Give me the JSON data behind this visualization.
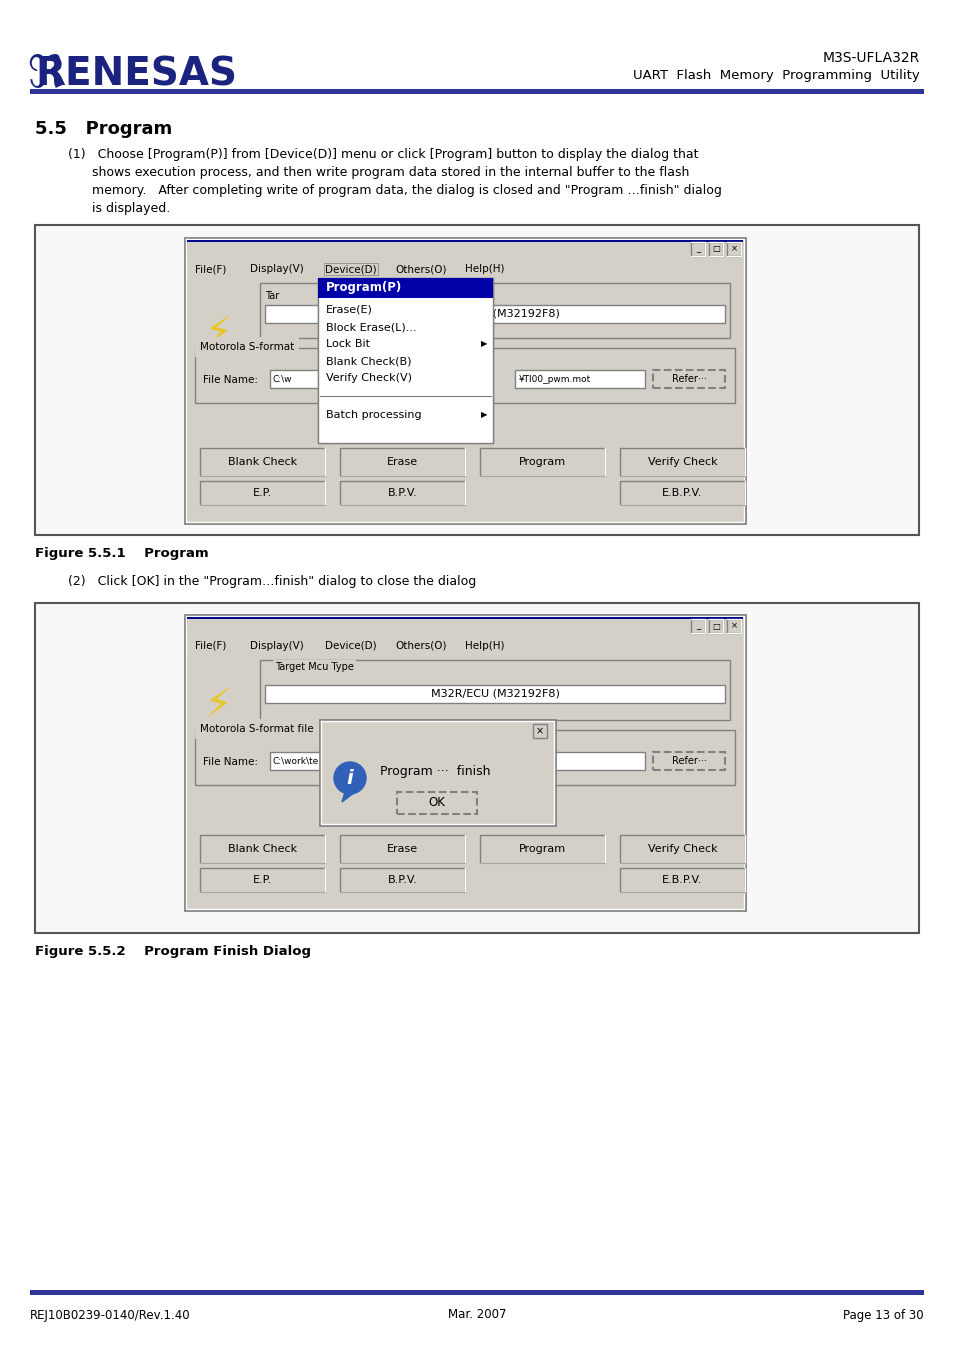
{
  "page_width": 9.54,
  "page_height": 13.51,
  "dpi": 100,
  "bg_color": "#ffffff",
  "header_line_color": "#2c3593",
  "renesas_color": "#1a237e",
  "black": "#000000",
  "gray_dialog": "#d4d0c8",
  "gray_light": "#c8c4bc",
  "white": "#ffffff",
  "dark_blue": "#000090",
  "med_blue": "#4080c0",
  "title_bar_left": "#6090d8",
  "win_gray": "#ece9d8",
  "section": "5.5   Program",
  "para1": [
    "(1)   Choose [Program(P)] from [Device(D)] menu or click [Program] button to display the dialog that",
    "      shows execution process, and then write program data stored in the internal buffer to the flash",
    "      memory.   After completing write of program data, the dialog is closed and \"Program …finish\" dialog",
    "      is displayed."
  ],
  "fig1_caption": "Figure 5.5.1    Program",
  "para2": "(2)   Click [OK] in the \"Program…finish\" dialog to close the dialog",
  "fig2_caption": "Figure 5.5.2    Program Finish Dialog",
  "footer_left": "REJ10B0239-0140/Rev.1.40",
  "footer_center": "Mar. 2007",
  "footer_right": "Page 13 of 30",
  "header_title": "M3S-UFLA32R",
  "header_sub": "UART  Flash  Memory  Programming  Utility"
}
